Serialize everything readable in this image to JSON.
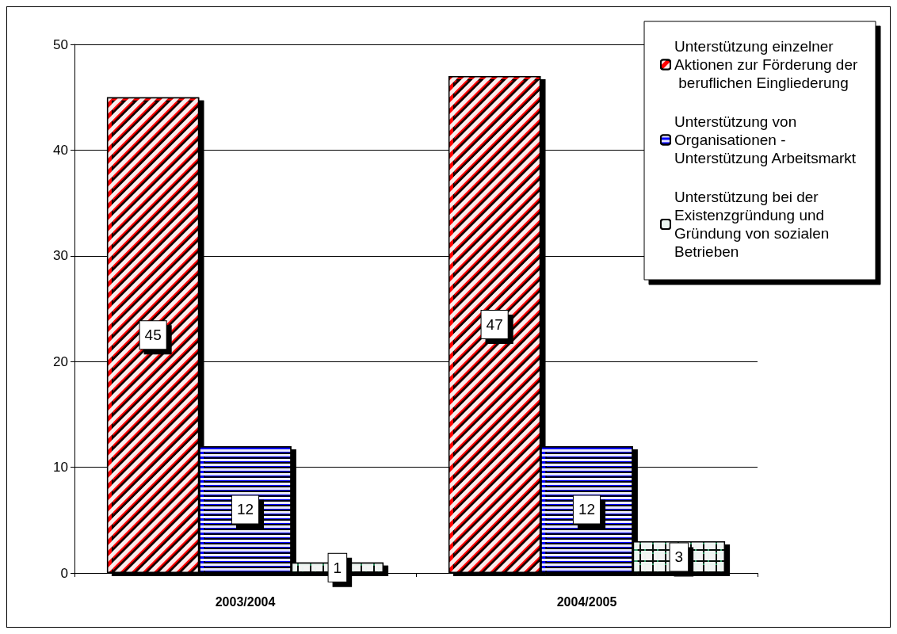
{
  "chart_data": {
    "type": "bar",
    "categories": [
      "2003/2004",
      "2004/2005"
    ],
    "series": [
      {
        "name": "Unterstützung einzelner Aktionen zur Förderung der beruflichen Eingliederung",
        "color": "#ff0000",
        "values": [
          45,
          47
        ]
      },
      {
        "name": "Unterstützung von Organisationen - Unterstützung Arbeitsmarkt",
        "color": "#0000ff",
        "values": [
          12,
          12
        ]
      },
      {
        "name": "Unterstützung bei der Existenzgründung und Gründung von sozialen Betrieben",
        "color": "#339966",
        "values": [
          1,
          3
        ]
      }
    ],
    "ylim": [
      0,
      50
    ],
    "yticks": [
      0,
      10,
      20,
      30,
      40,
      50
    ],
    "grid": "y",
    "legend": "top right",
    "data_labels": true
  }
}
